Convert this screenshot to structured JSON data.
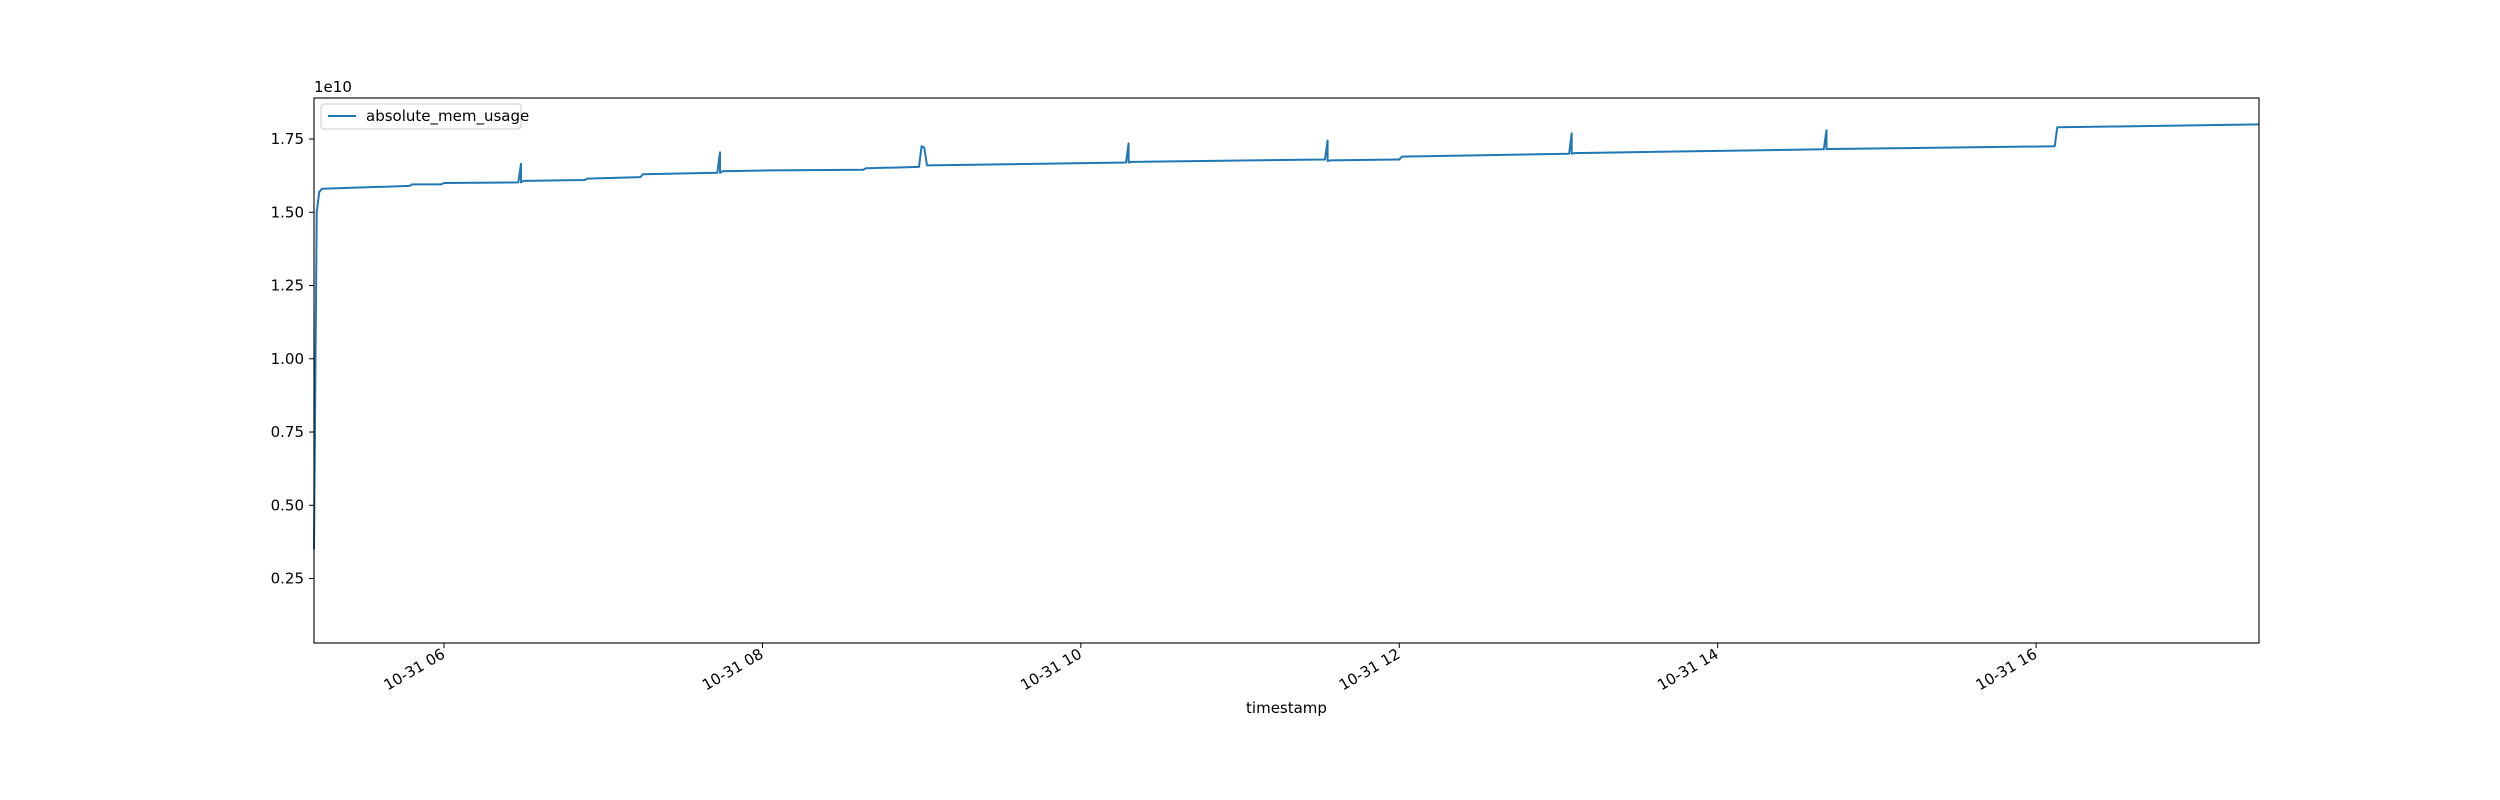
{
  "chart_data": {
    "type": "line",
    "title": "",
    "xlabel": "timestamp",
    "ylabel": "",
    "y_offset_label": "1e10",
    "y_scale": 10000000000.0,
    "xlim": [
      "10-31 05:11",
      "10-31 17:24"
    ],
    "ylim": [
      0.03,
      1.89
    ],
    "x_ticks": [
      {
        "t": "10-31 06:00",
        "label": "10-31 06"
      },
      {
        "t": "10-31 08:00",
        "label": "10-31 08"
      },
      {
        "t": "10-31 10:00",
        "label": "10-31 10"
      },
      {
        "t": "10-31 12:00",
        "label": "10-31 12"
      },
      {
        "t": "10-31 14:00",
        "label": "10-31 14"
      },
      {
        "t": "10-31 16:00",
        "label": "10-31 16"
      }
    ],
    "y_ticks": [
      0.25,
      0.5,
      0.75,
      1.0,
      1.25,
      1.5,
      1.75
    ],
    "y_tick_labels": [
      "0.25",
      "0.50",
      "0.75",
      "1.00",
      "1.25",
      "1.50",
      "1.75"
    ],
    "grid": false,
    "legend": {
      "position": "top-left",
      "entries": [
        {
          "name": "absolute_mem_usage",
          "color": "#1f77b4"
        }
      ]
    },
    "series": [
      {
        "name": "absolute_mem_usage",
        "color": "#1f77b4",
        "x": [
          "10-31 05:11",
          "10-31 05:12",
          "10-31 05:13",
          "10-31 05:14",
          "10-31 05:47",
          "10-31 05:48",
          "10-31 05:59",
          "10-31 06:00",
          "10-31 06:28",
          "10-31 06:29",
          "10-31 06:29",
          "10-31 06:30",
          "10-31 06:53",
          "10-31 06:54",
          "10-31 07:14",
          "10-31 07:15",
          "10-31 07:43",
          "10-31 07:44",
          "10-31 07:44",
          "10-31 07:45",
          "10-31 08:03",
          "10-31 08:04",
          "10-31 08:38",
          "10-31 08:39",
          "10-31 08:59",
          "10-31 09:00",
          "10-31 09:01",
          "10-31 09:02",
          "10-31 10:17",
          "10-31 10:18",
          "10-31 10:18",
          "10-31 10:19",
          "10-31 11:32",
          "10-31 11:33",
          "10-31 11:33",
          "10-31 11:34",
          "10-31 12:00",
          "10-31 12:01",
          "10-31 13:04",
          "10-31 13:05",
          "10-31 13:05",
          "10-31 13:06",
          "10-31 14:40",
          "10-31 14:41",
          "10-31 14:41",
          "10-31 14:42",
          "10-31 16:07",
          "10-31 16:08",
          "10-31 17:24"
        ],
        "y": [
          0.35,
          1.5,
          1.57,
          1.58,
          1.59,
          1.595,
          1.595,
          1.6,
          1.602,
          1.665,
          1.602,
          1.607,
          1.61,
          1.615,
          1.62,
          1.63,
          1.635,
          1.705,
          1.635,
          1.64,
          1.643,
          1.643,
          1.645,
          1.65,
          1.655,
          1.725,
          1.72,
          1.66,
          1.67,
          1.735,
          1.67,
          1.672,
          1.68,
          1.745,
          1.675,
          1.677,
          1.68,
          1.69,
          1.7,
          1.77,
          1.7,
          1.702,
          1.715,
          1.78,
          1.715,
          1.716,
          1.725,
          1.79,
          1.8
        ]
      }
    ]
  }
}
